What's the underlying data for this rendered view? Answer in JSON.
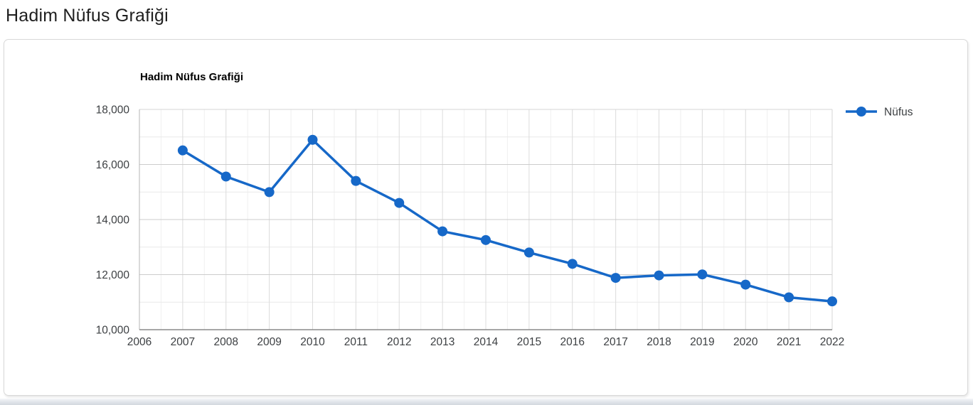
{
  "page": {
    "title": "Hadim Nüfus Grafiği"
  },
  "colors": {
    "series_blue": "#1668C8",
    "grid_major_h": "#cccccc",
    "grid_minor_h": "#e9e9e9",
    "grid_major_v": "#dcdcdc",
    "grid_minor_v": "#f0f0f0",
    "plot_border_top": "#d6d6d6",
    "plot_border_right": "#d6d6d6",
    "plot_border_left": "#b5b5b5",
    "plot_border_bottom": "#8a8a8a",
    "tick_label": "#3d4043",
    "chart_title": "#000000"
  },
  "chart_data": {
    "type": "line",
    "title": "Hadim Nüfus Grafiği",
    "xlabel": "",
    "ylabel": "",
    "x": [
      2007,
      2008,
      2009,
      2010,
      2011,
      2012,
      2013,
      2014,
      2015,
      2016,
      2017,
      2018,
      2019,
      2020,
      2021,
      2022
    ],
    "series": [
      {
        "name": "Nüfus",
        "color": "#1668C8",
        "values": [
          16512,
          15562,
          14997,
          16897,
          15402,
          14604,
          13572,
          13256,
          12803,
          12391,
          11881,
          11972,
          12007,
          11636,
          11175,
          11028
        ]
      }
    ],
    "xlim": [
      2006,
      2022
    ],
    "ylim": [
      10000,
      18000
    ],
    "x_ticks": [
      2006,
      2007,
      2008,
      2009,
      2010,
      2011,
      2012,
      2013,
      2014,
      2015,
      2016,
      2017,
      2018,
      2019,
      2020,
      2021,
      2022
    ],
    "y_ticks_labeled": [
      10000,
      12000,
      14000,
      16000,
      18000
    ],
    "y_gridline_step": 1000,
    "x_minor_gridline_step": 0.5,
    "grid": true,
    "legend_position": "right",
    "legend_label": "Nüfus",
    "number_format": "thousands-comma"
  }
}
